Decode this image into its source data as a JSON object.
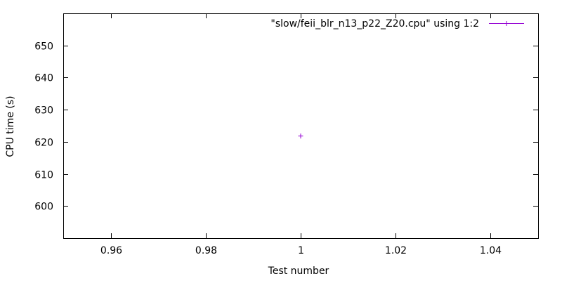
{
  "chart_data": {
    "type": "scatter",
    "title": "",
    "xlabel": "Test number",
    "ylabel": "CPU time (s)",
    "xlim": [
      0.95,
      1.05
    ],
    "ylim": [
      590,
      660
    ],
    "xticks": [
      0.96,
      0.98,
      1,
      1.02,
      1.04
    ],
    "xtick_labels": [
      "0.96",
      "0.98",
      "1",
      "1.02",
      "1.04"
    ],
    "yticks": [
      600,
      610,
      620,
      630,
      640,
      650
    ],
    "ytick_labels": [
      "600",
      "610",
      "620",
      "630",
      "640",
      "650"
    ],
    "grid": false,
    "legend_position": "top-right",
    "series": [
      {
        "name": "\"slow/feii_blr_n13_p22_Z20.cpu\" using 1:2",
        "color": "#9400d3",
        "marker": "plus",
        "points": [
          {
            "x": 1,
            "y": 621.8
          }
        ]
      }
    ]
  }
}
